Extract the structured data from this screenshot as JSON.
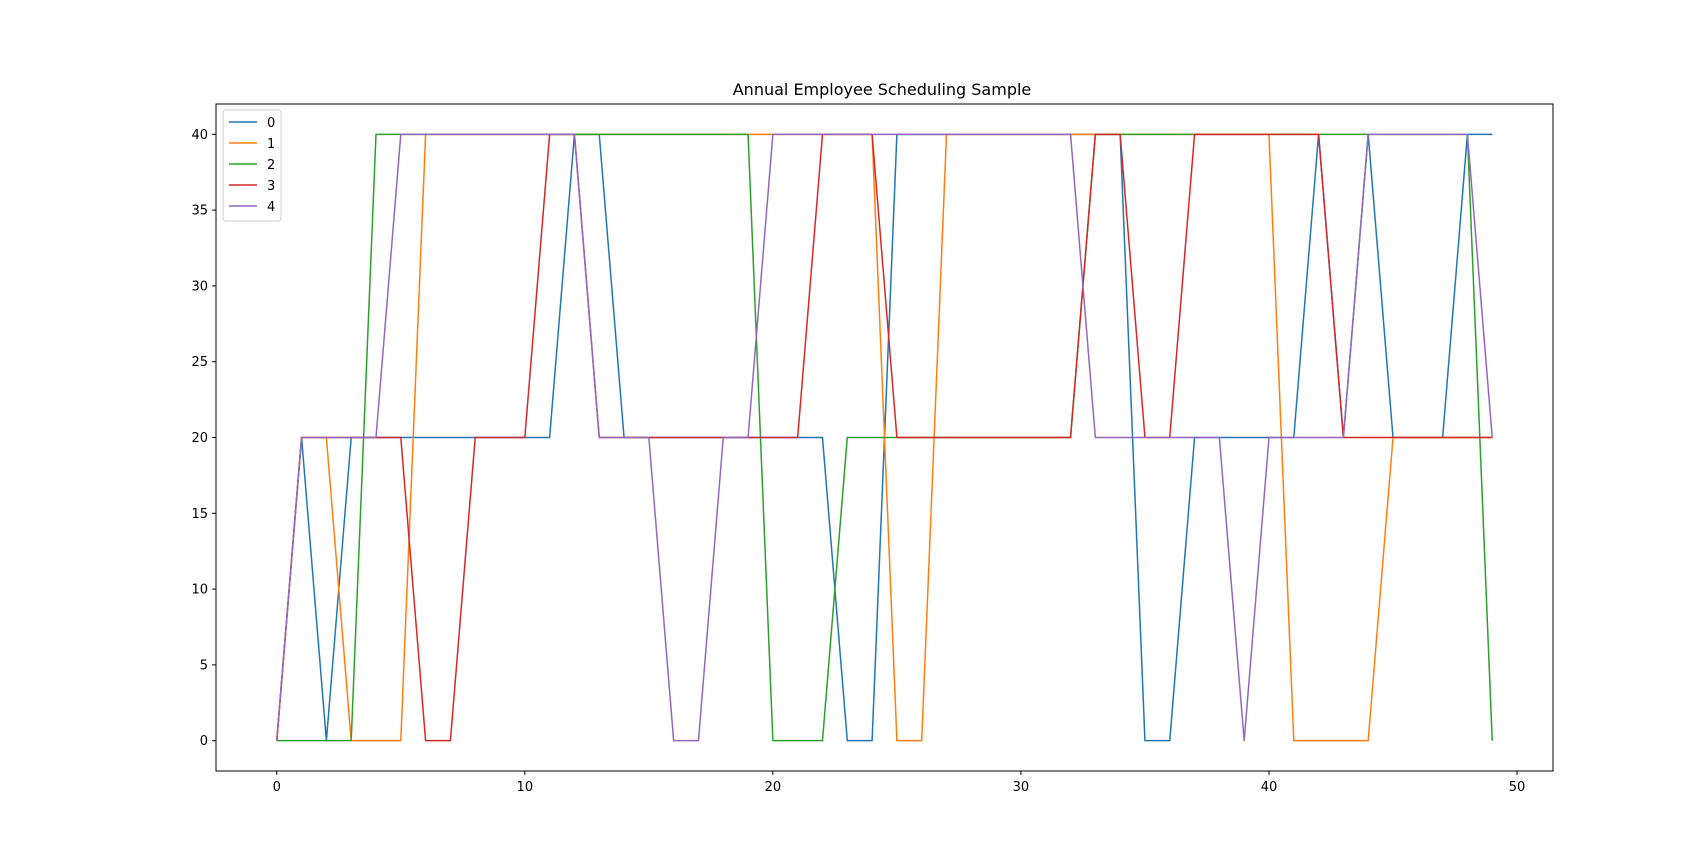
{
  "chart_data": {
    "type": "line",
    "title": "Annual Employee Scheduling Sample",
    "xlabel": "",
    "ylabel": "",
    "xlim": [
      -2.45,
      51.45
    ],
    "ylim": [
      -2,
      42
    ],
    "xticks": [
      0,
      10,
      20,
      30,
      40,
      50
    ],
    "yticks": [
      0,
      5,
      10,
      15,
      20,
      25,
      30,
      35,
      40
    ],
    "grid": false,
    "legend_position": "upper-left",
    "x": [
      0,
      1,
      2,
      3,
      4,
      5,
      6,
      7,
      8,
      9,
      10,
      11,
      12,
      13,
      14,
      15,
      16,
      17,
      18,
      19,
      20,
      21,
      22,
      23,
      24,
      25,
      26,
      27,
      28,
      29,
      30,
      31,
      32,
      33,
      34,
      35,
      36,
      37,
      38,
      39,
      40,
      41,
      42,
      43,
      44,
      45,
      46,
      47,
      48,
      49
    ],
    "series": [
      {
        "name": "0",
        "color": "#1f77b4",
        "values": [
          0,
          20,
          0,
          20,
          20,
          20,
          20,
          20,
          20,
          20,
          20,
          20,
          40,
          40,
          20,
          20,
          20,
          20,
          20,
          20,
          20,
          20,
          20,
          0,
          0,
          40,
          40,
          40,
          40,
          40,
          40,
          40,
          40,
          40,
          40,
          0,
          0,
          20,
          20,
          20,
          20,
          20,
          40,
          20,
          40,
          20,
          20,
          20,
          40,
          40
        ]
      },
      {
        "name": "1",
        "color": "#ff7f0e",
        "values": [
          0,
          20,
          20,
          0,
          0,
          0,
          40,
          40,
          40,
          40,
          40,
          40,
          40,
          40,
          40,
          40,
          40,
          40,
          40,
          40,
          40,
          40,
          40,
          40,
          40,
          0,
          0,
          40,
          40,
          40,
          40,
          40,
          40,
          40,
          40,
          40,
          40,
          40,
          40,
          40,
          40,
          0,
          0,
          0,
          0,
          20,
          20,
          20,
          20,
          20
        ]
      },
      {
        "name": "2",
        "color": "#2ca02c",
        "values": [
          0,
          0,
          0,
          0,
          40,
          40,
          40,
          40,
          40,
          40,
          40,
          40,
          40,
          40,
          40,
          40,
          40,
          40,
          40,
          40,
          0,
          0,
          0,
          20,
          20,
          20,
          20,
          20,
          20,
          20,
          20,
          20,
          20,
          40,
          40,
          40,
          40,
          40,
          40,
          40,
          40,
          40,
          40,
          40,
          40,
          40,
          40,
          40,
          40,
          0
        ]
      },
      {
        "name": "3",
        "color": "#d62728",
        "values": [
          0,
          20,
          20,
          20,
          20,
          20,
          0,
          0,
          20,
          20,
          20,
          40,
          40,
          20,
          20,
          20,
          20,
          20,
          20,
          20,
          20,
          20,
          40,
          40,
          40,
          20,
          20,
          20,
          20,
          20,
          20,
          20,
          20,
          40,
          40,
          20,
          20,
          40,
          40,
          40,
          40,
          40,
          40,
          20,
          20,
          20,
          20,
          20,
          20,
          20
        ]
      },
      {
        "name": "4",
        "color": "#9467bd",
        "values": [
          0,
          20,
          20,
          20,
          20,
          40,
          40,
          40,
          40,
          40,
          40,
          40,
          40,
          20,
          20,
          20,
          0,
          0,
          20,
          20,
          40,
          40,
          40,
          40,
          40,
          40,
          40,
          40,
          40,
          40,
          40,
          40,
          40,
          20,
          20,
          20,
          20,
          20,
          20,
          0,
          20,
          20,
          20,
          20,
          40,
          40,
          40,
          40,
          40,
          20
        ]
      }
    ]
  }
}
